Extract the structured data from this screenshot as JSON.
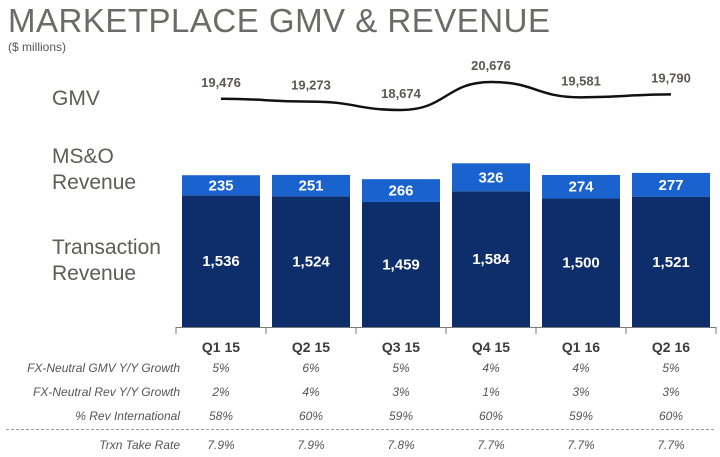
{
  "title": "MARKETPLACE GMV & REVENUE",
  "subtitle": "($ millions)",
  "row_labels": {
    "gmv": "GMV",
    "mso_line1": "MS&O",
    "mso_line2": "Revenue",
    "txn_line1": "Transaction",
    "txn_line2": "Revenue"
  },
  "colors": {
    "transaction": "#0e2e6b",
    "mso": "#1a63cf",
    "gmv_line": "#111111",
    "axis": "#7a7a7a"
  },
  "chart_data": {
    "type": "bar",
    "stacked": true,
    "categories": [
      "Q1 15",
      "Q2 15",
      "Q3 15",
      "Q4 15",
      "Q1 16",
      "Q2 16"
    ],
    "series": [
      {
        "name": "Transaction Revenue",
        "values": [
          1536,
          1524,
          1459,
          1584,
          1500,
          1521
        ]
      },
      {
        "name": "MS&O Revenue",
        "values": [
          235,
          251,
          266,
          326,
          274,
          277
        ]
      }
    ],
    "data_labels": {
      "transaction": [
        "1,536",
        "1,524",
        "1,459",
        "1,584",
        "1,500",
        "1,521"
      ],
      "mso": [
        "235",
        "251",
        "266",
        "326",
        "274",
        "277"
      ]
    },
    "gmv": {
      "name": "GMV",
      "values": [
        19476,
        19273,
        18674,
        20676,
        19581,
        19790
      ],
      "labels": [
        "19,476",
        "19,273",
        "18,674",
        "20,676",
        "19,581",
        "19,790"
      ]
    }
  },
  "stats_table": [
    {
      "label": "FX-Neutral GMV Y/Y Growth",
      "values": [
        "5%",
        "6%",
        "5%",
        "4%",
        "4%",
        "5%"
      ]
    },
    {
      "label": "FX-Neutral Rev Y/Y Growth",
      "values": [
        "2%",
        "4%",
        "3%",
        "1%",
        "3%",
        "3%"
      ]
    },
    {
      "label": "% Rev International",
      "values": [
        "58%",
        "60%",
        "59%",
        "60%",
        "59%",
        "60%"
      ]
    },
    {
      "label": "Trxn Take Rate",
      "values": [
        "7.9%",
        "7.9%",
        "7.8%",
        "7.7%",
        "7.7%",
        "7.7%"
      ]
    }
  ]
}
